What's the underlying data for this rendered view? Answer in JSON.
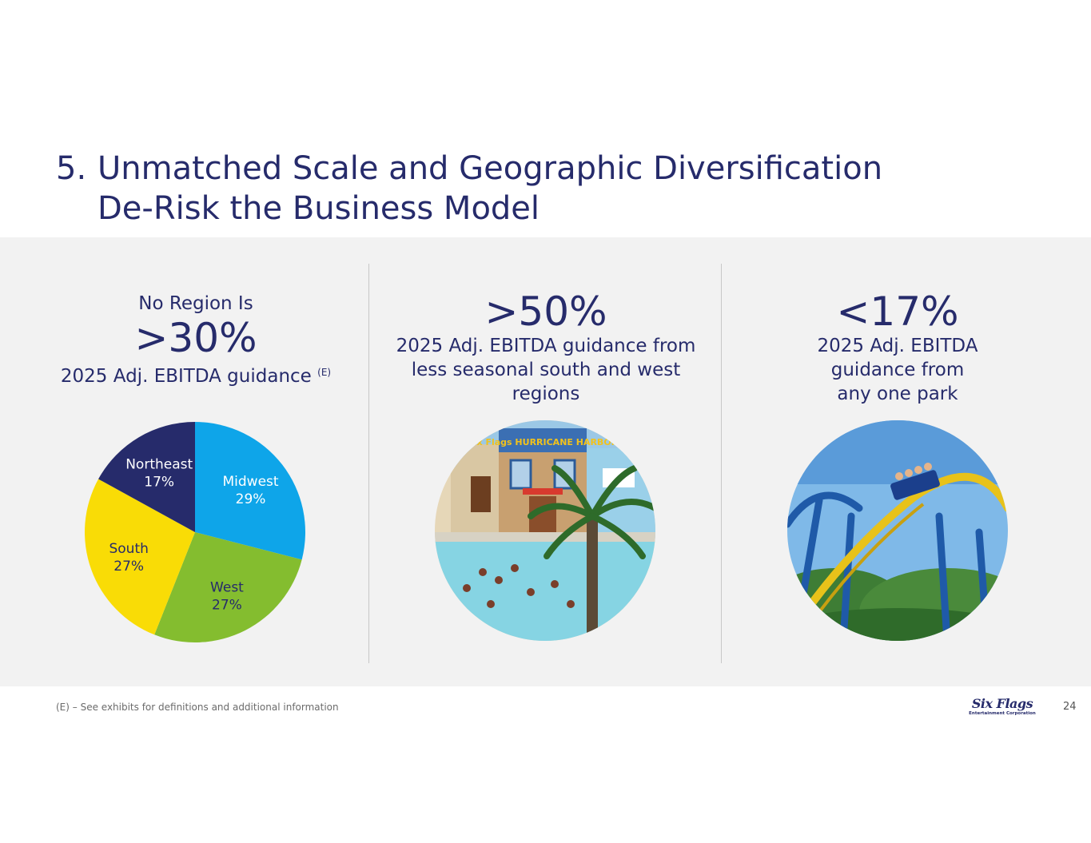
{
  "title": {
    "number": "5.",
    "line1": "Unmatched Scale and Geographic Diversification",
    "line2": "De-Risk the Business Model"
  },
  "col1": {
    "lead": "No Region Is",
    "big": ">30%",
    "sub": "2025 Adj. EBITDA guidance",
    "sup": "(E)"
  },
  "col2": {
    "big": ">50%",
    "sub": "2025 Adj. EBITDA guidance from less seasonal south and west regions",
    "photo_icon": "water-park-photo-icon",
    "sign_text": "Six Flags HURRICANE HARBOR"
  },
  "col3": {
    "big": "<17%",
    "sub_lines": [
      "2025 Adj. EBITDA",
      "guidance from",
      "any one park"
    ],
    "photo_icon": "roller-coaster-photo-icon"
  },
  "chart_data": {
    "type": "pie",
    "categories": [
      "Midwest",
      "West",
      "South",
      "Northeast"
    ],
    "values": [
      29,
      27,
      27,
      17
    ],
    "labels": [
      "29%",
      "27%",
      "27%",
      "17%"
    ],
    "colors": [
      "#0ea5e9",
      "#84bd2f",
      "#f9dc06",
      "#262b6b"
    ],
    "label_colors": [
      "#ffffff",
      "#262b6b",
      "#262b6b",
      "#ffffff"
    ]
  },
  "footer": {
    "footnote": "(E) – See exhibits for definitions and additional information",
    "logo_main": "Six Flags",
    "logo_sub": "Entertainment Corporation",
    "page_number": "24"
  }
}
